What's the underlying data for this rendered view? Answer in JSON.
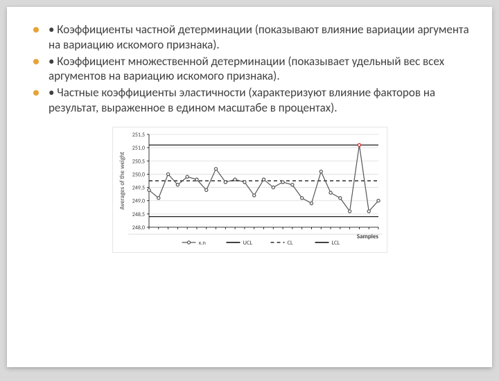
{
  "bullets": [
    "• Коэффициенты частной детерминации (показывают влияние вариации аргумента на вариацию искомого признака).",
    "• Коэффициент множественной детерминации (показывает удельный вес всех аргументов на вариацию искомого признака).",
    "• Частные коэффициенты эластичности (характеризуют влияние факторов на результат, выраженное в едином масштабе в процентах)."
  ],
  "chart": {
    "type": "line-control-chart",
    "background_color": "#ffffff",
    "plot_border_color": "#e5e5e5",
    "grid_color": "#dcdcdc",
    "axis_tick_color": "#000000",
    "ylabel": "Averages of the weight",
    "xlabel": "Samples",
    "label_fontsize": 9,
    "tick_fontsize": 8,
    "ylim": [
      248.0,
      251.5
    ],
    "yticks": [
      248.0,
      248.5,
      249.0,
      249.5,
      250.0,
      250.5,
      251.0,
      251.5
    ],
    "ytick_labels": [
      "248,0",
      "248,5",
      "249,0",
      "249,5",
      "250,0",
      "250,5",
      "251,0",
      "251,5"
    ],
    "n_points": 25,
    "xn_values": [
      249.4,
      249.1,
      250.0,
      249.6,
      249.9,
      249.8,
      249.4,
      250.2,
      249.7,
      249.8,
      249.7,
      249.2,
      249.8,
      249.5,
      249.7,
      249.6,
      249.1,
      248.9,
      250.1,
      249.3,
      249.1,
      248.6,
      251.1,
      248.6,
      249.0
    ],
    "xn_color": "#555555",
    "xn_marker_fill": "#ffffff",
    "xn_marker_stroke": "#555555",
    "xn_marker_radius": 2.1,
    "outlier_index": 22,
    "outlier_stroke": "#d02020",
    "ucl": 251.1,
    "lcl": 248.4,
    "cl": 249.75,
    "ucl_color": "#000000",
    "lcl_color": "#000000",
    "cl_color": "#000000",
    "cl_dash": "5,4",
    "line_width": 1.2,
    "legend": {
      "items": [
        {
          "label": "x.n",
          "kind": "line-marker",
          "color": "#555555",
          "marker_fill": "#ffffff"
        },
        {
          "label": "UCL",
          "kind": "line",
          "color": "#000000"
        },
        {
          "label": "CL",
          "kind": "dash",
          "color": "#000000",
          "dash": "5,4"
        },
        {
          "label": "LCL",
          "kind": "line",
          "color": "#000000"
        }
      ]
    }
  }
}
